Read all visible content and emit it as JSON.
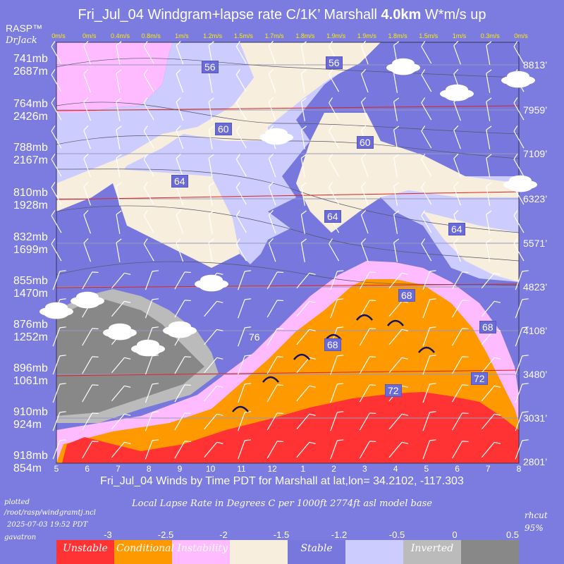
{
  "chart_data": {
    "type": "heatmap",
    "title_pre": "Fri_Jul_04 Windgram+lapse rate C/1K’  Marshall ",
    "title_bold": "4.0km",
    "title_post": "  W*m/s up",
    "xlabel": "Fri_Jul_04 Winds by Time PDT for Marshall at lat,lon= 34.2102, -117.303",
    "x_ticks": [
      "5",
      "6",
      "7",
      "8",
      "9",
      "10",
      "11",
      "12",
      "1",
      "2",
      "3",
      "4",
      "5",
      "6",
      "7",
      "8"
    ],
    "wstar": [
      "0m/s",
      "0m/s",
      "0.4m/s",
      "0.8m/s",
      "1m/s",
      "1.2m/s",
      "1.5m/s",
      "1.7m/s",
      "1.8m/s",
      "1.9m/s",
      "1.9m/s",
      "1.8m/s",
      "1.5m/s",
      "1m/s",
      "0.3m/s",
      "0m/s"
    ],
    "left_levels": [
      {
        "mb": "741mb",
        "m": "2687m"
      },
      {
        "mb": "764mb",
        "m": "2426m"
      },
      {
        "mb": "788mb",
        "m": "2167m"
      },
      {
        "mb": "810mb",
        "m": "1928m"
      },
      {
        "mb": "832mb",
        "m": "1699m"
      },
      {
        "mb": "855mb",
        "m": "1470m"
      },
      {
        "mb": "876mb",
        "m": "1252m"
      },
      {
        "mb": "896mb",
        "m": "1061m"
      },
      {
        "mb": "910mb",
        "m": "924m"
      },
      {
        "mb": "918mb",
        "m": "854m"
      }
    ],
    "right_levels": [
      "8813’",
      "7959’",
      "7109’",
      "6323’",
      "5571’",
      "4823’",
      "4108’",
      "3480’",
      "3031’",
      "2801’"
    ],
    "contour_labels": [
      "56",
      "56",
      "60",
      "60",
      "64",
      "64",
      "64",
      "68",
      "68",
      "68",
      "72",
      "72",
      "76"
    ],
    "legend": {
      "caption": "Local Lapse Rate in Degrees C per 1000ft  2774ft asl model base",
      "ticks": [
        "-3",
        "-2.5",
        "-2",
        "-1.5",
        "-1.2",
        "-0.5",
        "0",
        "0.5"
      ],
      "bands": [
        {
          "name": "Unstable",
          "color": "#ff3333"
        },
        {
          "name": "Conditional Instability",
          "color": "#ff9900"
        },
        {
          "name": "",
          "color": "#ffbbff"
        },
        {
          "name": "",
          "color": "#f8eedd"
        },
        {
          "name": "Stable",
          "color": "#7777dd"
        },
        {
          "name": "",
          "color": "#ccccff"
        },
        {
          "name": "Inverted",
          "color": "#bbbbbb"
        },
        {
          "name": "",
          "color": "#888888"
        }
      ]
    }
  },
  "header": {
    "rasp": "RASP™",
    "drjack": "DrJack"
  },
  "footer": {
    "plotted": "plotted",
    "path": "/root/rasp/windgramtj.ncl",
    "date": "2025-07-03 19:52 PDT",
    "user": "gavatron",
    "rhcut": "rhcut",
    "rhval": "95%"
  }
}
